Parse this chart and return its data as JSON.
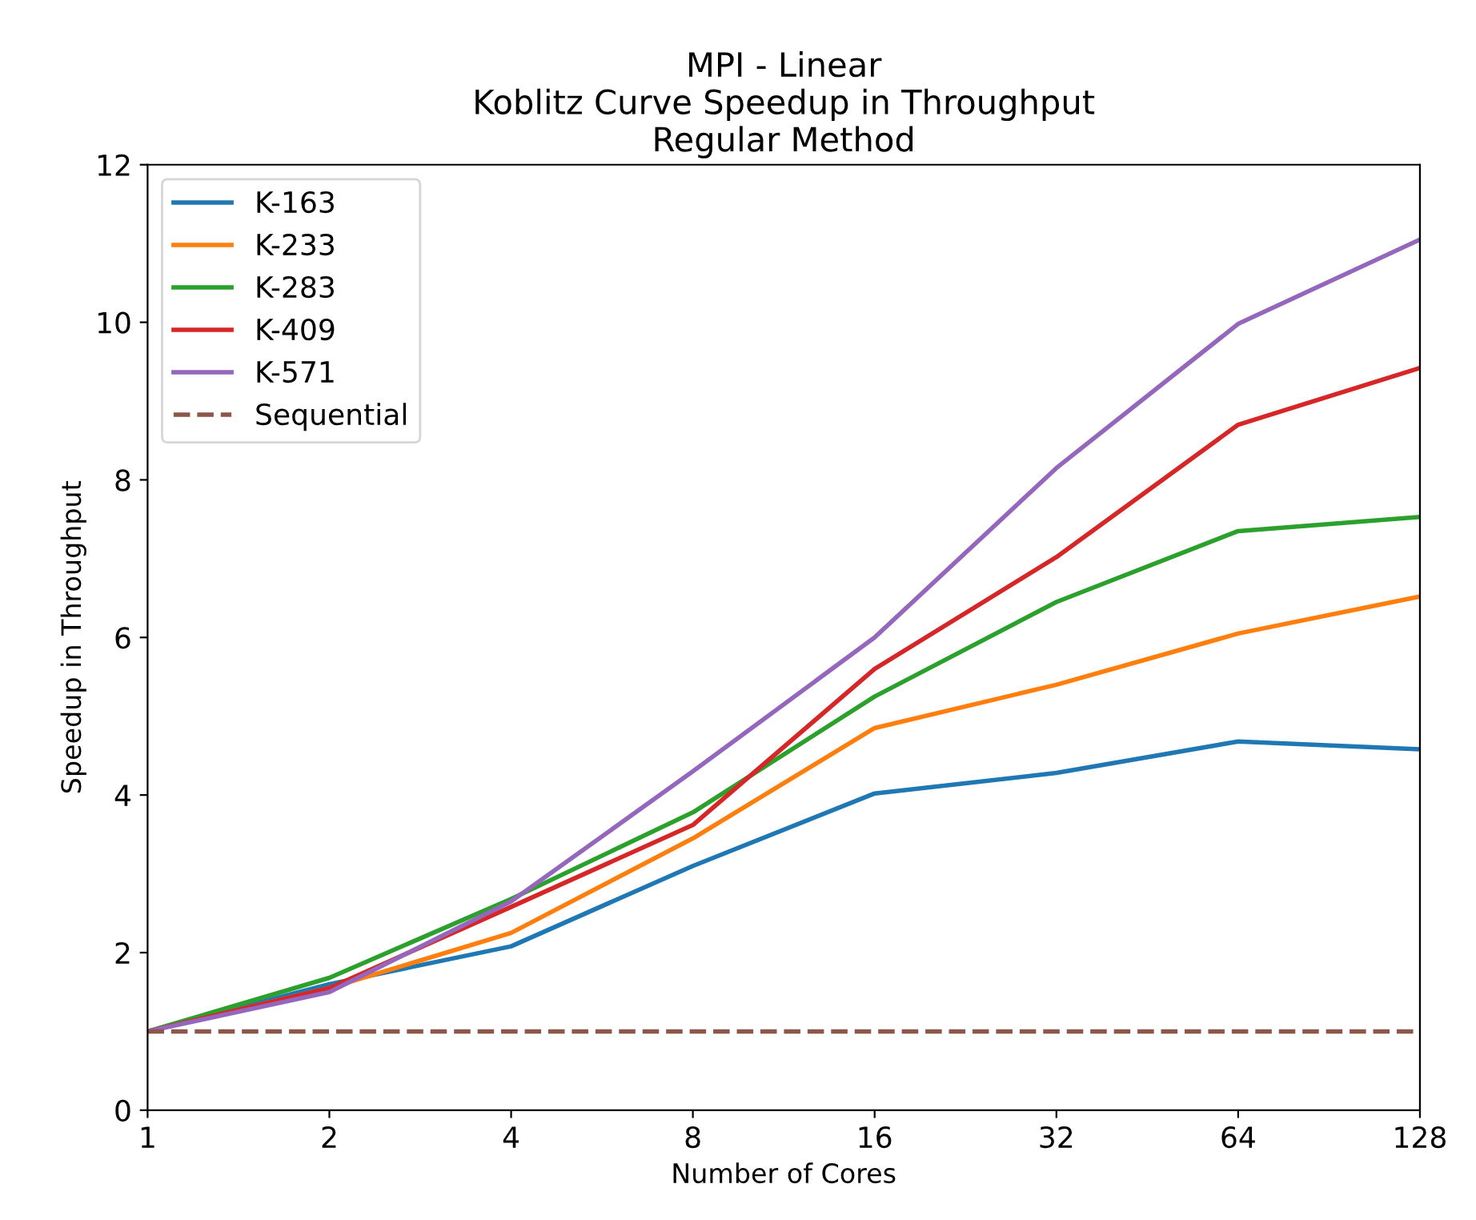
{
  "chart_data": {
    "type": "line",
    "title": "MPI - Linear\nKoblitz Curve Speedup in Throughput\nRegular Method",
    "xlabel": "Number of Cores",
    "ylabel": "Speedup in Throughput",
    "x": [
      1,
      2,
      4,
      8,
      16,
      32,
      64,
      128
    ],
    "log": "x",
    "xlim": [
      1,
      128
    ],
    "xticks": [
      1,
      2,
      4,
      8,
      16,
      32,
      64,
      128
    ],
    "ylim": [
      0,
      12
    ],
    "yticks": [
      0,
      2,
      4,
      6,
      8,
      10,
      12
    ],
    "grid": false,
    "legend": "top left",
    "marker": "none",
    "series": [
      {
        "name": "K-163",
        "color": "#1f77b4",
        "values": [
          1,
          1.6,
          2.08,
          3.1,
          4.02,
          4.28,
          4.68,
          4.58
        ]
      },
      {
        "name": "K-233",
        "color": "#ff7f0e",
        "values": [
          1,
          1.55,
          2.25,
          3.45,
          4.85,
          5.4,
          6.05,
          6.52
        ]
      },
      {
        "name": "K-283",
        "color": "#2ca02c",
        "values": [
          1,
          1.68,
          2.68,
          3.78,
          5.25,
          6.45,
          7.35,
          7.53
        ]
      },
      {
        "name": "K-409",
        "color": "#d62728",
        "values": [
          1,
          1.55,
          2.58,
          3.62,
          5.6,
          7.02,
          8.7,
          9.42
        ]
      },
      {
        "name": "K-571",
        "color": "#9467bd",
        "values": [
          1,
          1.5,
          2.65,
          4.3,
          6.0,
          8.15,
          9.98,
          11.05
        ]
      },
      {
        "name": "Sequential",
        "color": "#8c564b",
        "line_style": "dashed",
        "values": [
          1,
          1,
          1,
          1,
          1,
          1,
          1,
          1
        ]
      }
    ]
  }
}
